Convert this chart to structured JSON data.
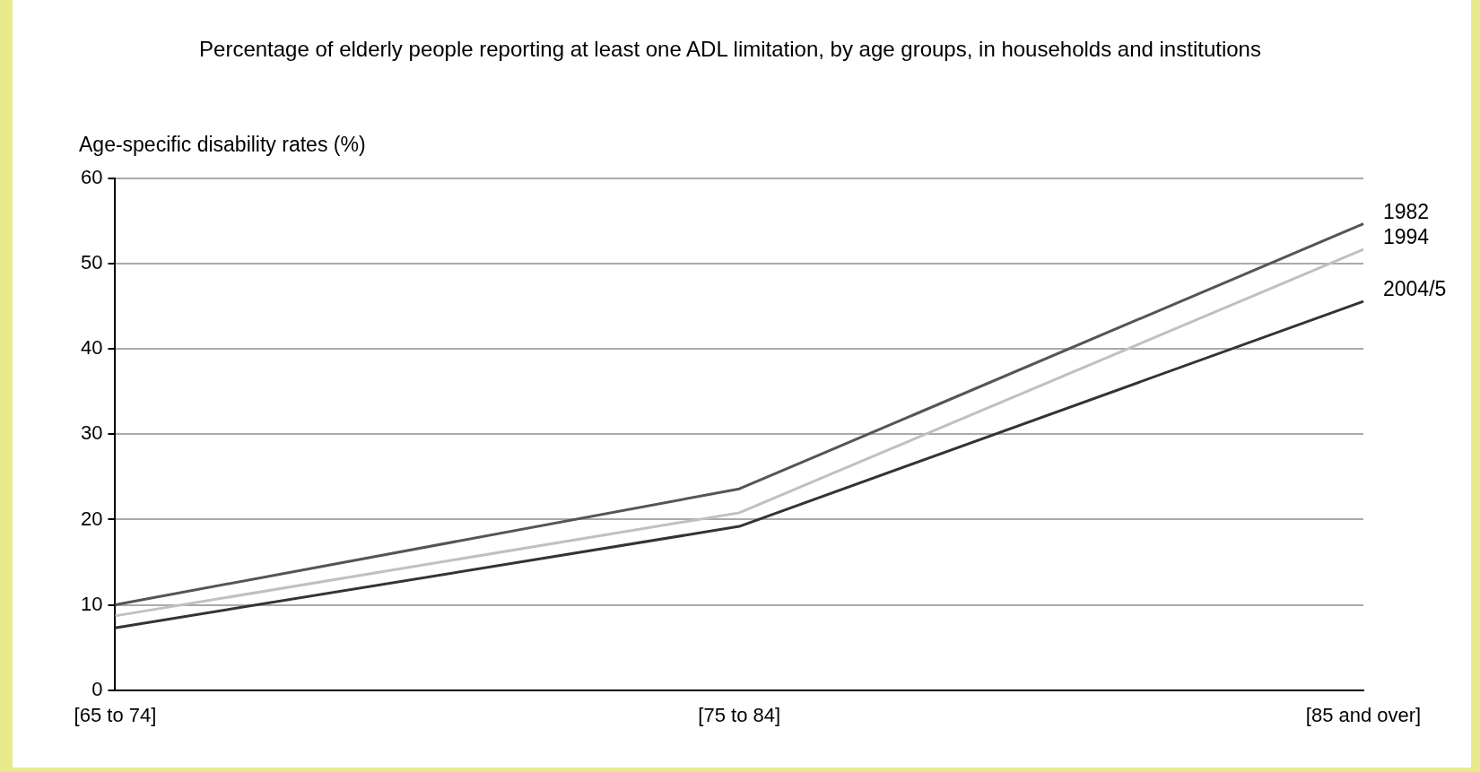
{
  "chart_data": {
    "type": "line",
    "title": "Percentage of elderly people reporting at least one ADL limitation, by age groups, in households and institutions",
    "ylabel": "Age-specific disability rates (%)",
    "categories": [
      "[65 to 74]",
      "[75 to 84]",
      "[85 and over]"
    ],
    "series": [
      {
        "name": "1982",
        "color": "#555555",
        "values": [
          10.0,
          23.6,
          54.7
        ]
      },
      {
        "name": "1994",
        "color": "#c0c0c0",
        "values": [
          8.7,
          20.8,
          51.7
        ]
      },
      {
        "name": "2004/5",
        "color": "#333333",
        "values": [
          7.3,
          19.2,
          45.6
        ]
      }
    ],
    "ylim": [
      0,
      60
    ],
    "yticks": [
      0,
      10,
      20,
      30,
      40,
      50,
      60
    ],
    "grid": "y",
    "legend": false,
    "marker": "none",
    "line_style": "solid"
  }
}
